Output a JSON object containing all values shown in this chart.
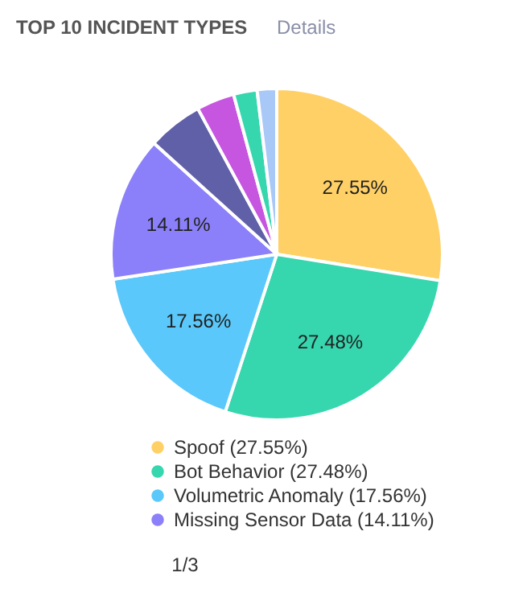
{
  "chart_data": {
    "type": "pie",
    "title": "TOP 10 INCIDENT TYPES",
    "categories": [
      "Spoof (27.55%)",
      "Bot Behavior (27.48%)",
      "Volumetric Anomaly (17.56%)",
      "Missing Sensor Data (14.11%)",
      null,
      null,
      null,
      null
    ],
    "values": [
      27.55,
      27.48,
      17.56,
      14.11,
      5.4,
      3.7,
      2.3,
      1.9
    ],
    "colors": [
      "#ffd066",
      "#36d6ae",
      "#5ac8fa",
      "#8b80f9",
      "#6060a8",
      "#c655e0",
      "#36d6ae",
      "#a8c8f8"
    ],
    "value_labels": [
      "27.55%",
      "27.48%",
      "17.56%",
      "14.11%",
      null,
      null,
      null,
      null
    ],
    "legend": "bottom",
    "annotations": [
      "Details",
      "1/3"
    ]
  }
}
